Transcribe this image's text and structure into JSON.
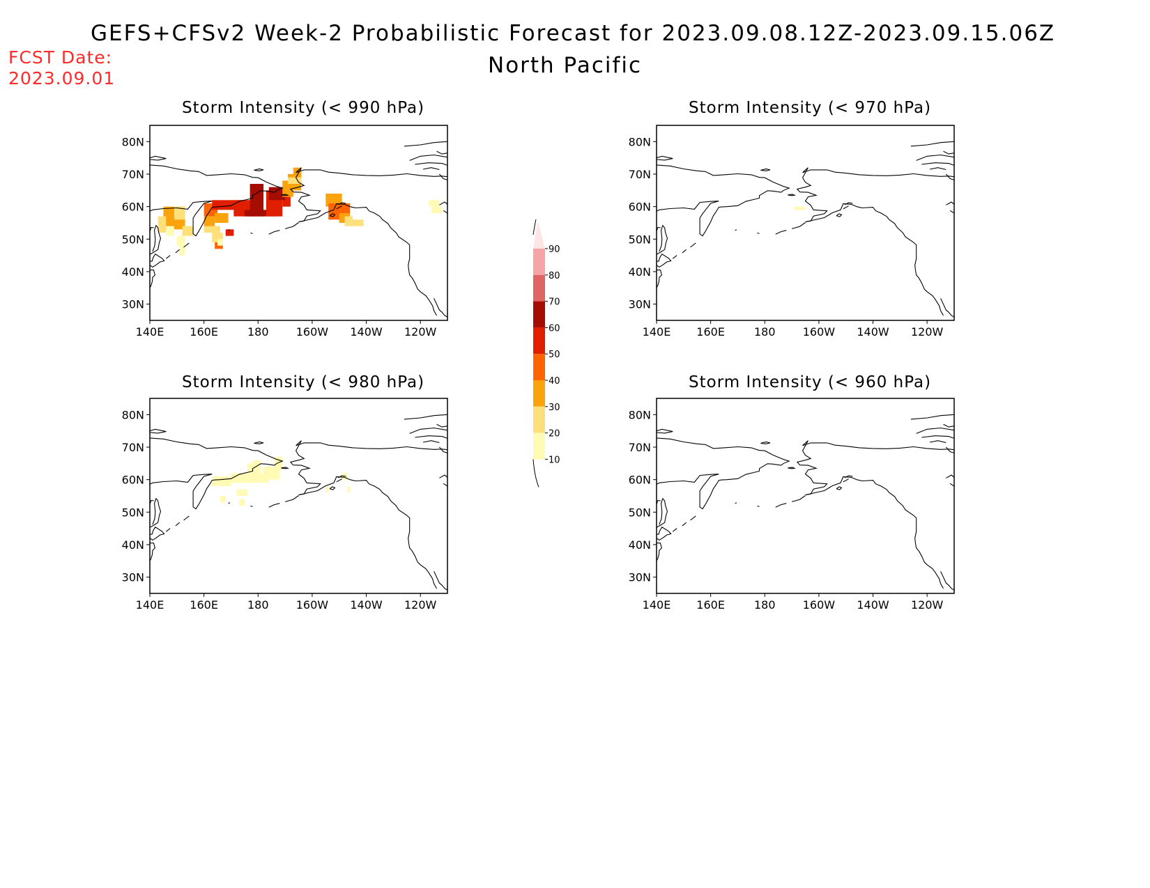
{
  "header": {
    "title": "GEFS+CFSv2 Week-2 Probabilistic Forecast for 2023.09.08.12Z-2023.09.15.06Z",
    "subtitle": "North Pacific",
    "fcst_label": "FCST Date:",
    "fcst_date": "2023.09.01",
    "fcst_color": "#ff2a2a"
  },
  "map_axes": {
    "lat_labels": [
      "80N",
      "70N",
      "60N",
      "50N",
      "40N",
      "30N"
    ],
    "lon_labels": [
      "140E",
      "160E",
      "180",
      "160W",
      "140W",
      "120W"
    ]
  },
  "panels": [
    {
      "id": "p990",
      "title": "Storm Intensity (< 990 hPa)"
    },
    {
      "id": "p970",
      "title": "Storm Intensity (< 970 hPa)"
    },
    {
      "id": "p980",
      "title": "Storm Intensity (< 980 hPa)"
    },
    {
      "id": "p960",
      "title": "Storm Intensity (< 960 hPa)"
    }
  ],
  "colorbar": {
    "labels": [
      "10",
      "20",
      "30",
      "40",
      "50",
      "60",
      "70",
      "80",
      "90"
    ],
    "colors": [
      "#fffbb5",
      "#fde07a",
      "#fba30d",
      "#ff6400",
      "#e01e00",
      "#a50d00",
      "#df6464",
      "#f5a5a5",
      "#fde5e5"
    ]
  }
}
